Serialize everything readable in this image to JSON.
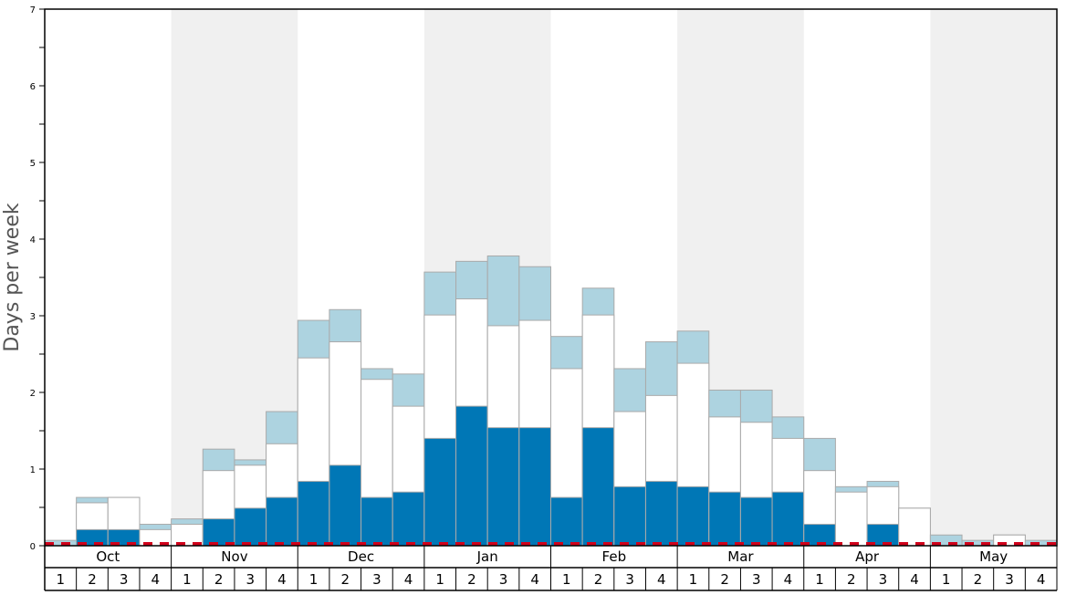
{
  "chart_data": {
    "type": "bar",
    "ylabel": "Days per week",
    "ylim": [
      0,
      7
    ],
    "yticks": [
      "0",
      "1",
      "2",
      "3",
      "4",
      "5",
      "6",
      "7"
    ],
    "months": [
      "Oct",
      "Nov",
      "Dec",
      "Jan",
      "Feb",
      "Mar",
      "Apr",
      "May"
    ],
    "weeks": [
      "1",
      "2",
      "3",
      "4"
    ],
    "colors": {
      "dark": "#0077b6",
      "middle": "#ffffff",
      "light": "#add3e0",
      "shade": "#f0f0f0",
      "baseline": "#d0021b",
      "border": "#aaaaaa"
    },
    "series": [
      {
        "values_dark": [
          0,
          0.21,
          0.21,
          0,
          0,
          0.35,
          0.49,
          0.63,
          0.84,
          1.05,
          0.63,
          0.7,
          1.4,
          1.82,
          1.54,
          1.54,
          0.63,
          1.54,
          0.77,
          0.84,
          0.77,
          0.7,
          0.63,
          0.7,
          0.28,
          0,
          0.28,
          0,
          0,
          0,
          0,
          0
        ],
        "values_white_top": [
          0,
          0.56,
          0.63,
          0.21,
          0.28,
          0.98,
          1.05,
          1.33,
          2.45,
          2.66,
          2.17,
          1.82,
          3.01,
          3.22,
          2.87,
          2.94,
          2.31,
          3.01,
          1.75,
          1.96,
          2.38,
          1.68,
          1.61,
          1.4,
          0.98,
          0.7,
          0.77,
          0.49,
          0,
          0,
          0.14,
          0
        ],
        "values_total": [
          0.07,
          0.63,
          0.63,
          0.28,
          0.35,
          1.26,
          1.12,
          1.75,
          2.94,
          3.08,
          2.31,
          2.24,
          3.57,
          3.71,
          3.78,
          3.64,
          2.73,
          3.36,
          2.31,
          2.66,
          2.8,
          2.03,
          2.03,
          1.68,
          1.4,
          0.77,
          0.84,
          0.49,
          0.14,
          0.07,
          0.14,
          0.07
        ]
      }
    ],
    "grid": false
  }
}
